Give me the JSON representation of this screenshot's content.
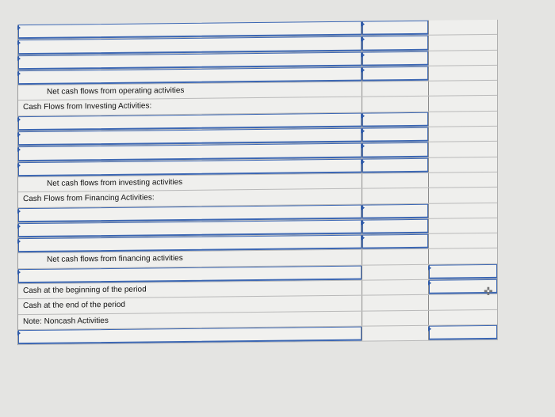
{
  "rows": [
    {
      "type": "input",
      "c2": true
    },
    {
      "type": "input",
      "c2": true
    },
    {
      "type": "input",
      "c2": true
    },
    {
      "type": "input",
      "c2": true
    },
    {
      "type": "label",
      "label": "Net cash flows from operating activities",
      "indent": true
    },
    {
      "type": "label",
      "label": "Cash Flows from Investing Activities:"
    },
    {
      "type": "input",
      "c2": true
    },
    {
      "type": "input",
      "c2": true
    },
    {
      "type": "input",
      "c2": true
    },
    {
      "type": "input",
      "c2": true
    },
    {
      "type": "label",
      "label": "Net cash flows from investing activities",
      "indent": true
    },
    {
      "type": "label",
      "label": "Cash Flows from Financing Activities:"
    },
    {
      "type": "input",
      "c2": true
    },
    {
      "type": "input",
      "c2": true
    },
    {
      "type": "input",
      "c2": true
    },
    {
      "type": "label",
      "label": "Net cash flows from financing activities",
      "indent": true
    },
    {
      "type": "input",
      "c3": true
    },
    {
      "type": "label",
      "label": "Cash at the beginning of the period",
      "c3": true
    },
    {
      "type": "label",
      "label": "Cash at the end of the period"
    },
    {
      "type": "label",
      "label": "Note: Noncash Activities"
    },
    {
      "type": "input",
      "c3": true
    }
  ],
  "colors": {
    "input_border": "#3c67b3",
    "background": "#e4e4e2"
  },
  "cursor_icon": "move-cursor-icon"
}
